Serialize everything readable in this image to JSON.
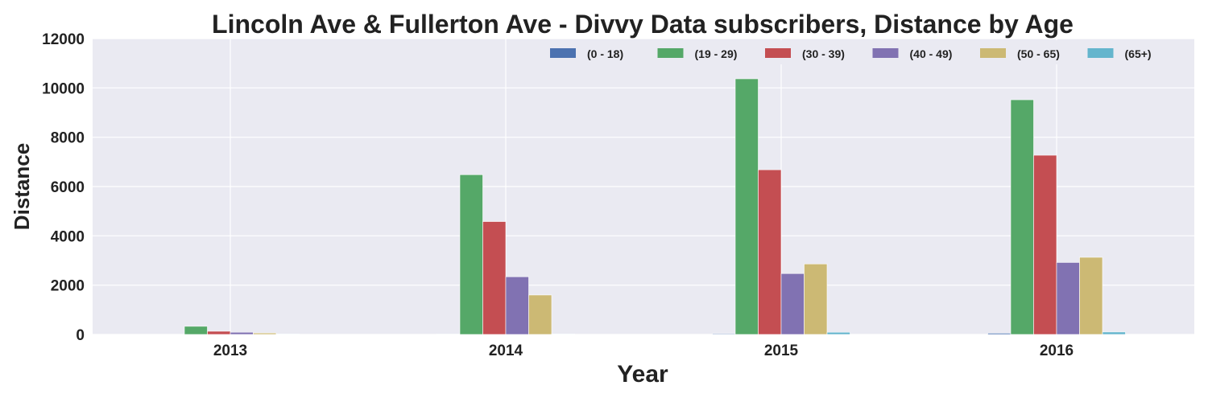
{
  "chart_data": {
    "type": "bar",
    "title": "Lincoln Ave & Fullerton Ave - Divvy Data subscribers, Distance by Age",
    "xlabel": "Year",
    "ylabel": "Distance",
    "categories": [
      "2013",
      "2014",
      "2015",
      "2016"
    ],
    "ylim": [
      0,
      12000
    ],
    "yticks": [
      0,
      2000,
      4000,
      6000,
      8000,
      10000,
      12000
    ],
    "grid": true,
    "legend_position": "top-right",
    "series": [
      {
        "name": "(0 - 18)",
        "color": "#4c72b0",
        "values": [
          0,
          20,
          30,
          50
        ]
      },
      {
        "name": "(19 - 29)",
        "color": "#55a868",
        "values": [
          330,
          6480,
          10370,
          9520
        ]
      },
      {
        "name": "(30 - 39)",
        "color": "#c44e52",
        "values": [
          130,
          4580,
          6680,
          7270
        ]
      },
      {
        "name": "(40 - 49)",
        "color": "#8172b2",
        "values": [
          90,
          2340,
          2470,
          2920
        ]
      },
      {
        "name": "(50 - 65)",
        "color": "#ccb974",
        "values": [
          60,
          1600,
          2860,
          3130
        ]
      },
      {
        "name": "(65+)",
        "color": "#64b5cd",
        "values": [
          20,
          20,
          90,
          100
        ]
      }
    ]
  }
}
